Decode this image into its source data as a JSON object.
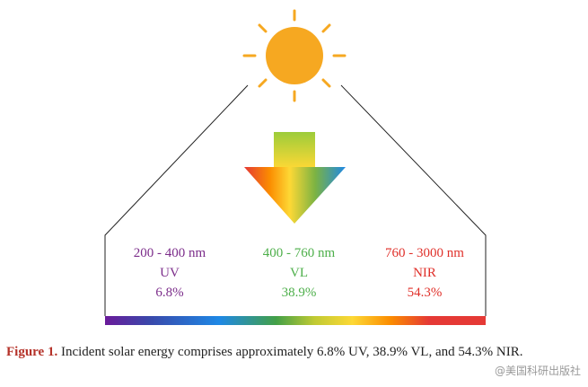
{
  "bands": [
    {
      "range": "200 - 400 nm",
      "name": "UV",
      "share": "6.8%",
      "color": "#7b2c8a"
    },
    {
      "range": "400 - 760 nm",
      "name": "VL",
      "share": "38.9%",
      "color": "#4daf4a"
    },
    {
      "range": "760 - 3000 nm",
      "name": "NIR",
      "share": "54.3%",
      "color": "#e0302a"
    }
  ],
  "caption": {
    "label": "Figure 1.",
    "text": "Incident solar energy comprises approximately 6.8% UV, 38.9% VL, and 54.3% NIR."
  },
  "watermark": "@美国科研出版社"
}
